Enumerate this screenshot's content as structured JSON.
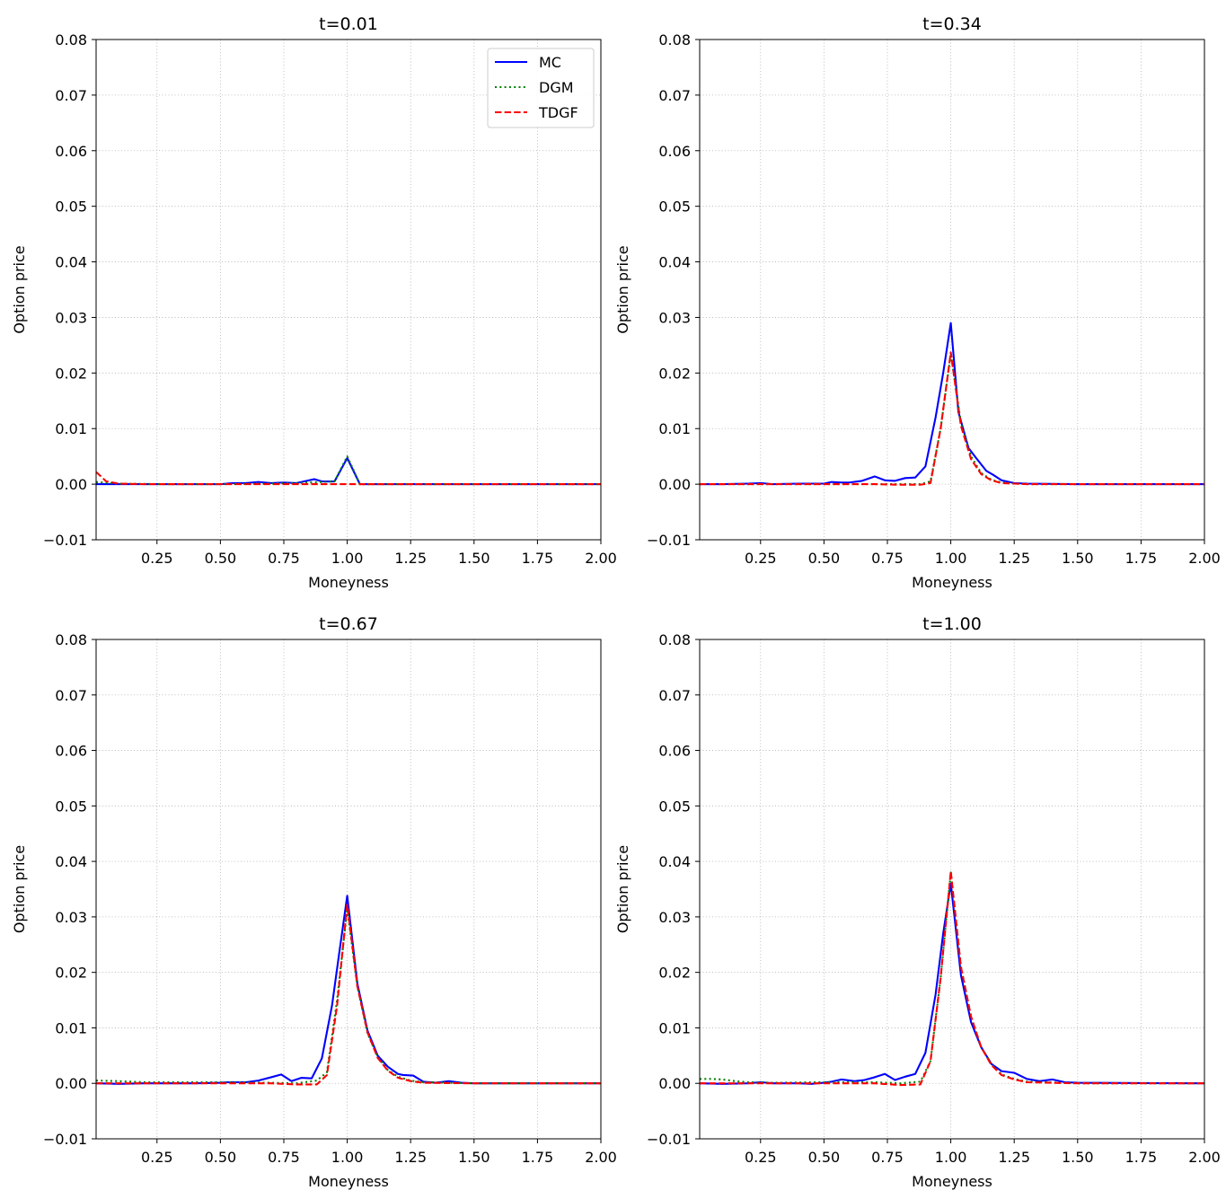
{
  "chart_data": [
    {
      "type": "line",
      "title": "t=0.01",
      "xlabel": "Moneyness",
      "ylabel": "Option price",
      "xlim": [
        0.01,
        2.0
      ],
      "ylim": [
        -0.01,
        0.08
      ],
      "xticks": [
        "0.25",
        "0.50",
        "0.75",
        "1.00",
        "1.25",
        "1.50",
        "1.75",
        "2.00"
      ],
      "yticks": [
        "−0.01",
        "0.00",
        "0.01",
        "0.02",
        "0.03",
        "0.04",
        "0.05",
        "0.06",
        "0.07",
        "0.08"
      ],
      "grid": true,
      "legend": {
        "placement": "upper right",
        "entries": [
          "MC",
          "DGM",
          "TDGF"
        ]
      },
      "series": [
        {
          "name": "MC",
          "color": "#0000ff",
          "style": "solid",
          "x": [
            0.01,
            0.05,
            0.1,
            0.2,
            0.3,
            0.4,
            0.5,
            0.55,
            0.6,
            0.65,
            0.7,
            0.75,
            0.8,
            0.85,
            0.87,
            0.9,
            0.95,
            1.0,
            1.05,
            1.1,
            1.3,
            1.5,
            1.75,
            2.0
          ],
          "y": [
            0.0,
            0.0,
            0.0,
            0.0,
            0.0,
            0.0,
            0.0,
            0.0002,
            0.0002,
            0.0004,
            0.0002,
            0.0003,
            0.0002,
            0.0007,
            0.0009,
            0.0005,
            0.0005,
            0.0047,
            0.0,
            0.0,
            0.0,
            0.0,
            0.0,
            0.0
          ]
        },
        {
          "name": "DGM",
          "color": "#008000",
          "style": "dotted",
          "x": [
            0.01,
            0.1,
            0.3,
            0.5,
            0.7,
            0.8,
            0.9,
            0.95,
            1.0,
            1.05,
            1.1,
            1.5,
            2.0
          ],
          "y": [
            0.0004,
            0.0001,
            0.0,
            0.0,
            0.0001,
            0.0002,
            0.0004,
            0.0005,
            0.005,
            0.0,
            0.0,
            0.0,
            0.0
          ]
        },
        {
          "name": "TDGF",
          "color": "#ff0000",
          "style": "dashed",
          "x": [
            0.01,
            0.05,
            0.1,
            0.2,
            0.5,
            0.9,
            1.0,
            1.5,
            2.0
          ],
          "y": [
            0.0022,
            0.0005,
            0.0001,
            0.0,
            0.0,
            0.0,
            0.0,
            0.0,
            0.0
          ]
        }
      ]
    },
    {
      "type": "line",
      "title": "t=0.34",
      "xlabel": "Moneyness",
      "ylabel": "Option price",
      "xlim": [
        0.01,
        2.0
      ],
      "ylim": [
        -0.01,
        0.08
      ],
      "xticks": [
        "0.25",
        "0.50",
        "0.75",
        "1.00",
        "1.25",
        "1.50",
        "1.75",
        "2.00"
      ],
      "yticks": [
        "−0.01",
        "0.00",
        "0.01",
        "0.02",
        "0.03",
        "0.04",
        "0.05",
        "0.06",
        "0.07",
        "0.08"
      ],
      "grid": true,
      "series": [
        {
          "name": "MC",
          "color": "#0000ff",
          "style": "solid",
          "x": [
            0.01,
            0.1,
            0.2,
            0.25,
            0.3,
            0.4,
            0.5,
            0.53,
            0.57,
            0.6,
            0.65,
            0.7,
            0.74,
            0.78,
            0.82,
            0.86,
            0.9,
            0.94,
            0.97,
            1.0,
            1.03,
            1.07,
            1.1,
            1.14,
            1.17,
            1.2,
            1.25,
            1.3,
            1.5,
            2.0
          ],
          "y": [
            0.0,
            0.0,
            0.0001,
            0.0002,
            0.0,
            0.0001,
            0.0001,
            0.0004,
            0.0003,
            0.0003,
            0.0006,
            0.0014,
            0.0007,
            0.0006,
            0.0011,
            0.0012,
            0.0032,
            0.012,
            0.02,
            0.029,
            0.013,
            0.0065,
            0.0047,
            0.0024,
            0.0016,
            0.0007,
            0.0002,
            0.0001,
            0.0,
            0.0
          ]
        },
        {
          "name": "DGM",
          "color": "#008000",
          "style": "dotted",
          "x": [
            0.01,
            0.5,
            0.7,
            0.8,
            0.88,
            0.92,
            0.96,
            1.0,
            1.04,
            1.08,
            1.12,
            1.16,
            1.2,
            1.25,
            1.3,
            1.5,
            2.0
          ],
          "y": [
            0.0,
            0.0,
            0.0,
            0.0,
            0.0,
            0.0005,
            0.01,
            0.0235,
            0.011,
            0.005,
            0.002,
            0.0008,
            0.0003,
            0.0001,
            0.0,
            0.0,
            0.0
          ]
        },
        {
          "name": "TDGF",
          "color": "#ff0000",
          "style": "dashed",
          "x": [
            0.01,
            0.5,
            0.7,
            0.8,
            0.88,
            0.92,
            0.96,
            1.0,
            1.04,
            1.08,
            1.12,
            1.16,
            1.2,
            1.25,
            1.3,
            1.5,
            2.0
          ],
          "y": [
            0.0,
            0.0,
            0.0,
            -0.0001,
            -0.0001,
            0.0002,
            0.01,
            0.0237,
            0.0105,
            0.0045,
            0.0018,
            0.0007,
            0.0002,
            0.0001,
            0.0,
            0.0,
            0.0
          ]
        }
      ]
    },
    {
      "type": "line",
      "title": "t=0.67",
      "xlabel": "Moneyness",
      "ylabel": "Option price",
      "xlim": [
        0.01,
        2.0
      ],
      "ylim": [
        -0.01,
        0.08
      ],
      "xticks": [
        "0.25",
        "0.50",
        "0.75",
        "1.00",
        "1.25",
        "1.50",
        "1.75",
        "2.00"
      ],
      "yticks": [
        "−0.01",
        "0.00",
        "0.01",
        "0.02",
        "0.03",
        "0.04",
        "0.05",
        "0.06",
        "0.07",
        "0.08"
      ],
      "grid": true,
      "series": [
        {
          "name": "MC",
          "color": "#0000ff",
          "style": "solid",
          "x": [
            0.01,
            0.1,
            0.2,
            0.3,
            0.4,
            0.5,
            0.53,
            0.6,
            0.65,
            0.7,
            0.74,
            0.78,
            0.82,
            0.86,
            0.9,
            0.94,
            0.97,
            1.0,
            1.04,
            1.08,
            1.12,
            1.16,
            1.2,
            1.22,
            1.26,
            1.3,
            1.35,
            1.4,
            1.45,
            1.5,
            2.0
          ],
          "y": [
            0.0,
            -0.0001,
            0.0,
            0.0,
            0.0,
            0.0001,
            0.0002,
            0.0002,
            0.0005,
            0.0011,
            0.0016,
            0.0004,
            0.001,
            0.0009,
            0.0045,
            0.014,
            0.024,
            0.0338,
            0.018,
            0.0095,
            0.005,
            0.003,
            0.0017,
            0.0015,
            0.0014,
            0.0003,
            0.0001,
            0.0004,
            0.0001,
            0.0,
            0.0
          ]
        },
        {
          "name": "DGM",
          "color": "#008000",
          "style": "dotted",
          "x": [
            0.01,
            0.1,
            0.2,
            0.5,
            0.7,
            0.8,
            0.88,
            0.92,
            0.96,
            1.0,
            1.04,
            1.08,
            1.12,
            1.16,
            1.2,
            1.25,
            1.3,
            1.5,
            2.0
          ],
          "y": [
            0.0005,
            0.0004,
            0.0002,
            0.0002,
            0.0001,
            0.0,
            0.0005,
            0.002,
            0.015,
            0.0315,
            0.0175,
            0.009,
            0.0048,
            0.0024,
            0.0012,
            0.0005,
            0.0002,
            0.0,
            0.0
          ]
        },
        {
          "name": "TDGF",
          "color": "#ff0000",
          "style": "dashed",
          "x": [
            0.01,
            0.5,
            0.7,
            0.8,
            0.88,
            0.92,
            0.96,
            1.0,
            1.04,
            1.08,
            1.12,
            1.16,
            1.2,
            1.25,
            1.3,
            1.5,
            2.0
          ],
          "y": [
            0.0,
            0.0,
            0.0,
            -0.0002,
            -0.0002,
            0.0015,
            0.014,
            0.0322,
            0.0175,
            0.0092,
            0.0046,
            0.0023,
            0.001,
            0.0004,
            0.0001,
            0.0,
            0.0
          ]
        }
      ]
    },
    {
      "type": "line",
      "title": "t=1.00",
      "xlabel": "Moneyness",
      "ylabel": "Option price",
      "xlim": [
        0.01,
        2.0
      ],
      "ylim": [
        -0.01,
        0.08
      ],
      "xticks": [
        "0.25",
        "0.50",
        "0.75",
        "1.00",
        "1.25",
        "1.50",
        "1.75",
        "2.00"
      ],
      "yticks": [
        "−0.01",
        "0.00",
        "0.01",
        "0.02",
        "0.03",
        "0.04",
        "0.05",
        "0.06",
        "0.07",
        "0.08"
      ],
      "grid": true,
      "series": [
        {
          "name": "MC",
          "color": "#0000ff",
          "style": "solid",
          "x": [
            0.01,
            0.1,
            0.2,
            0.25,
            0.3,
            0.4,
            0.45,
            0.5,
            0.53,
            0.57,
            0.62,
            0.66,
            0.7,
            0.74,
            0.78,
            0.82,
            0.86,
            0.9,
            0.94,
            0.97,
            1.0,
            1.04,
            1.08,
            1.12,
            1.16,
            1.2,
            1.25,
            1.3,
            1.35,
            1.4,
            1.45,
            1.5,
            2.0
          ],
          "y": [
            0.0,
            -0.0001,
            0.0,
            0.0002,
            0.0,
            0.0,
            -0.0001,
            0.0001,
            0.0003,
            0.0007,
            0.0004,
            0.0006,
            0.0011,
            0.0017,
            0.0006,
            0.0012,
            0.0017,
            0.0055,
            0.016,
            0.027,
            0.036,
            0.0195,
            0.011,
            0.0065,
            0.0035,
            0.0022,
            0.0019,
            0.0008,
            0.0004,
            0.0007,
            0.0002,
            0.0001,
            0.0
          ]
        },
        {
          "name": "DGM",
          "color": "#008000",
          "style": "dotted",
          "x": [
            0.01,
            0.05,
            0.1,
            0.15,
            0.2,
            0.3,
            0.5,
            0.7,
            0.8,
            0.88,
            0.92,
            0.96,
            1.0,
            1.04,
            1.08,
            1.12,
            1.16,
            1.2,
            1.25,
            1.3,
            1.5,
            2.0
          ],
          "y": [
            0.0008,
            0.0008,
            0.0007,
            0.0004,
            0.0002,
            0.0001,
            0.0002,
            0.0002,
            0.0,
            0.0003,
            0.004,
            0.019,
            0.038,
            0.021,
            0.012,
            0.0065,
            0.0035,
            0.0016,
            0.0008,
            0.0003,
            0.0,
            0.0
          ]
        },
        {
          "name": "TDGF",
          "color": "#ff0000",
          "style": "dashed",
          "x": [
            0.01,
            0.5,
            0.7,
            0.8,
            0.88,
            0.92,
            0.96,
            1.0,
            1.04,
            1.08,
            1.12,
            1.16,
            1.2,
            1.25,
            1.3,
            1.5,
            2.0
          ],
          "y": [
            0.0,
            0.0,
            0.0,
            -0.0003,
            -0.0002,
            0.004,
            0.019,
            0.0382,
            0.021,
            0.012,
            0.0065,
            0.0033,
            0.0015,
            0.0007,
            0.0002,
            0.0,
            0.0
          ]
        }
      ]
    }
  ]
}
